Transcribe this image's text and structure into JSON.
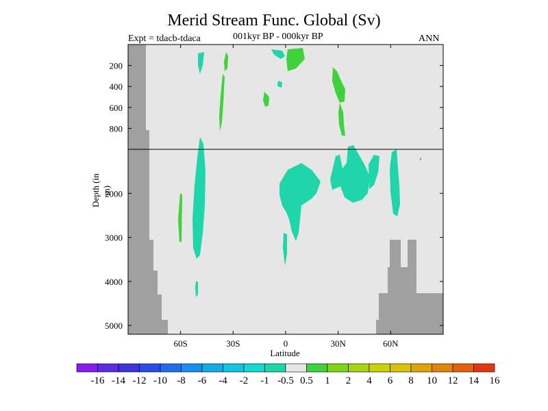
{
  "header": {
    "title": "Merid Stream Func. Global (Sv)",
    "left_label": "Expt = tdacb-tdaca",
    "center_label": "001kyr BP - 000kyr BP",
    "right_label": "ANN"
  },
  "chart_data": {
    "type": "heatmap",
    "title": "Merid Stream Func. Global (Sv)",
    "xlabel": "Latitude",
    "ylabel": "Depth (in m)",
    "x_ticks": [
      "60S",
      "30S",
      "0",
      "30N",
      "60N"
    ],
    "x_tick_values": [
      -60,
      -30,
      0,
      30,
      60
    ],
    "xlim": [
      -90,
      90
    ],
    "upper_panel": {
      "ylim": [
        0,
        1000
      ],
      "y_ticks": [
        "200",
        "400",
        "600",
        "800"
      ],
      "y_tick_values": [
        200,
        400,
        600,
        800
      ]
    },
    "lower_panel": {
      "ylim": [
        1000,
        5200
      ],
      "y_ticks": [
        "2000",
        "3000",
        "4000",
        "5000"
      ],
      "y_tick_values": [
        2000,
        3000,
        4000,
        5000
      ]
    },
    "colorbar": {
      "labels": [
        "-16",
        "-14",
        "-12",
        "-10",
        "-8",
        "-6",
        "-4",
        "-2",
        "-1",
        "-0.5",
        "0.5",
        "1",
        "2",
        "4",
        "6",
        "8",
        "10",
        "12",
        "14",
        "16"
      ],
      "colors": [
        "#8a1ce6",
        "#5b2ddb",
        "#3b35d6",
        "#2a4fe0",
        "#1f6fe8",
        "#1a90ea",
        "#16a9ea",
        "#14c2e3",
        "#17d8d0",
        "#1ed6a9",
        "#e6e6e6",
        "#3fd23a",
        "#7fd41e",
        "#a8d418",
        "#c9d20e",
        "#d8c20c",
        "#dea40c",
        "#e0840e",
        "#e0620f",
        "#dd3a12"
      ]
    },
    "background_color": "#e6e6e6",
    "land_color": "#a0a0a0"
  }
}
